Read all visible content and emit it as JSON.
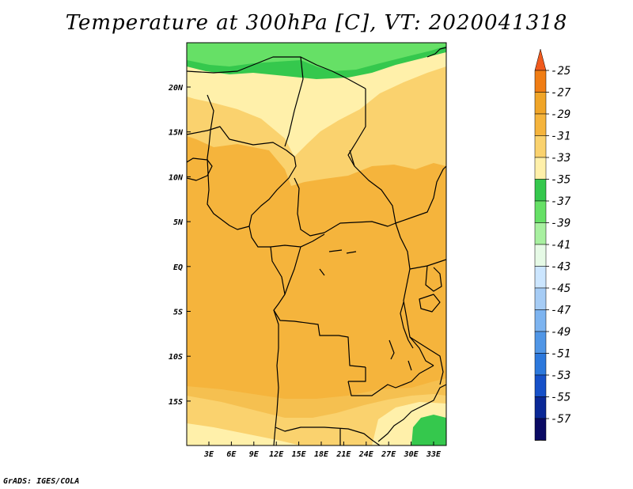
{
  "title": "Temperature at 300hPa [C], VT: 2020041318",
  "credit": "GrADS: IGES/COLA",
  "lat_ticks": [
    "20N",
    "15N",
    "10N",
    "5N",
    "EQ",
    "5S",
    "10S",
    "15S"
  ],
  "lon_ticks": [
    "3E",
    "6E",
    "9E",
    "12E",
    "15E",
    "18E",
    "21E",
    "24E",
    "27E",
    "30E",
    "33E"
  ],
  "colorbar": {
    "labels": [
      "-25",
      "-27",
      "-29",
      "-31",
      "-33",
      "-35",
      "-37",
      "-39",
      "-41",
      "-43",
      "-45",
      "-47",
      "-49",
      "-51",
      "-53",
      "-55",
      "-57"
    ],
    "colors": [
      "#f05a1e",
      "#f07d14",
      "#f0a528",
      "#f5b43c",
      "#fad26e",
      "#fff0aa",
      "#35c84d",
      "#66e066",
      "#a8f0a0",
      "#e6fae6",
      "#cce6ff",
      "#a6ccf5",
      "#7db4f0",
      "#5096e6",
      "#2c78dc",
      "#1650c8",
      "#0a2896",
      "#0a0a64",
      "#e6dcff"
    ]
  }
}
